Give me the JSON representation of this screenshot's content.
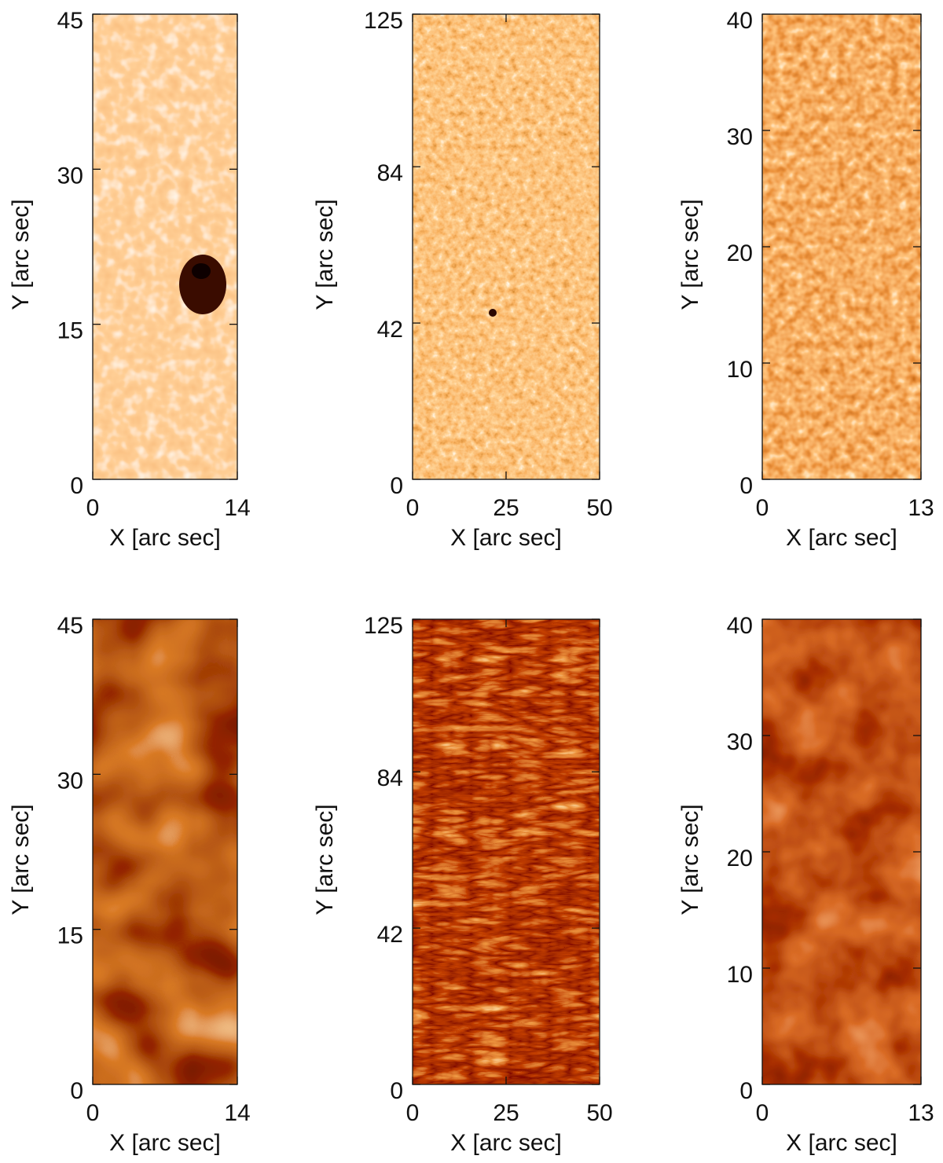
{
  "chart_data": [
    {
      "type": "image",
      "xlabel": "X [arc sec]",
      "ylabel": "Y [arc sec]",
      "xlim": [
        0,
        14
      ],
      "ylim": [
        0,
        45
      ],
      "xticks": [
        0,
        14
      ],
      "yticks": [
        0,
        15,
        30,
        45
      ]
    },
    {
      "type": "image",
      "xlabel": "X [arc sec]",
      "ylabel": "Y [arc sec]",
      "xlim": [
        0,
        50
      ],
      "ylim": [
        0,
        125
      ],
      "xticks": [
        0,
        25,
        50
      ],
      "yticks": [
        0,
        42,
        84,
        125
      ]
    },
    {
      "type": "image",
      "xlabel": "X [arc sec]",
      "ylabel": "Y [arc sec]",
      "xlim": [
        0,
        13
      ],
      "ylim": [
        0,
        40
      ],
      "xticks": [
        0,
        13
      ],
      "yticks": [
        0,
        10,
        20,
        30,
        40
      ]
    },
    {
      "type": "image",
      "xlabel": "X [arc sec]",
      "ylabel": "Y [arc sec]",
      "xlim": [
        0,
        14
      ],
      "ylim": [
        0,
        45
      ],
      "xticks": [
        0,
        14
      ],
      "yticks": [
        0,
        15,
        30,
        45
      ]
    },
    {
      "type": "image",
      "xlabel": "X [arc sec]",
      "ylabel": "Y [arc sec]",
      "xlim": [
        0,
        50
      ],
      "ylim": [
        0,
        125
      ],
      "xticks": [
        0,
        25,
        50
      ],
      "yticks": [
        0,
        42,
        84,
        125
      ]
    },
    {
      "type": "image",
      "xlabel": "X [arc sec]",
      "ylabel": "Y [arc sec]",
      "xlim": [
        0,
        13
      ],
      "ylim": [
        0,
        40
      ],
      "xticks": [
        0,
        13
      ],
      "yticks": [
        0,
        10,
        20,
        30,
        40
      ]
    }
  ]
}
